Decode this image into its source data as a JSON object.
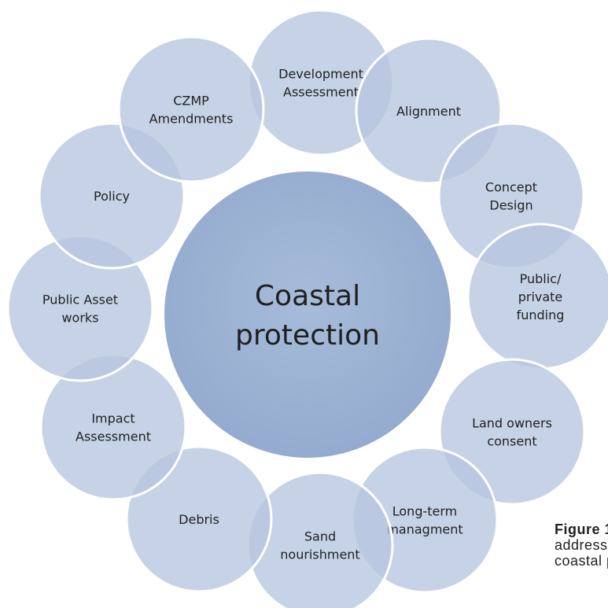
{
  "hub": {
    "lines": [
      "Coastal",
      "protection"
    ]
  },
  "nodes": [
    {
      "id": "development-assessment",
      "lines": [
        "Development",
        "Assessment"
      ]
    },
    {
      "id": "alignment",
      "lines": [
        "Alignment"
      ]
    },
    {
      "id": "concept-design",
      "lines": [
        "Concept",
        "Design"
      ]
    },
    {
      "id": "public-private-funding",
      "lines": [
        "Public/",
        "private",
        "funding"
      ]
    },
    {
      "id": "land-owners-consent",
      "lines": [
        "Land owners",
        "consent"
      ]
    },
    {
      "id": "long-term-managment",
      "lines": [
        "Long-term",
        "managment"
      ]
    },
    {
      "id": "sand-nourishment",
      "lines": [
        "Sand",
        "nourishment"
      ]
    },
    {
      "id": "debris",
      "lines": [
        "Debris"
      ]
    },
    {
      "id": "impact-assessment",
      "lines": [
        "Impact",
        "Assessment"
      ]
    },
    {
      "id": "public-asset-works",
      "lines": [
        "Public Asset",
        "works"
      ]
    },
    {
      "id": "policy",
      "lines": [
        "Policy"
      ]
    },
    {
      "id": "czmp-amendments",
      "lines": [
        "CZMP",
        "Amendments"
      ]
    }
  ],
  "caption": {
    "title": "Figure 1",
    "lines": [
      "address",
      "coastal p"
    ]
  },
  "colors": {
    "hub_fill": "#9db3d3",
    "node_fill": "#b6c6df",
    "node_stroke": "#ffffff",
    "text": "#1f1f1f"
  }
}
